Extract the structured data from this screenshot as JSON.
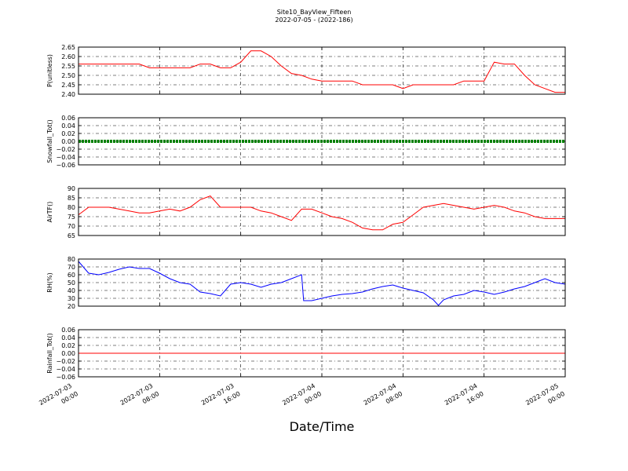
{
  "figure": {
    "title": "Site10_BayView_Fifteen",
    "subtitle": "2022-07-05 - (2022-186)",
    "xlabel": "Date/Time"
  },
  "chart_data": [
    {
      "type": "line",
      "ylabel": "P(unitless)",
      "ylim": [
        2.4,
        2.65
      ],
      "yticks": [
        "2.65",
        "2.60",
        "2.55",
        "2.50",
        "2.45",
        "2.40"
      ],
      "xlim": [
        0,
        48
      ],
      "x_unit": "hours since 2022-07-03 00:00",
      "color": "#ff0000",
      "grid": true,
      "x": [
        0,
        2,
        4,
        5,
        6,
        7,
        8,
        9,
        10,
        11,
        12,
        13,
        14,
        15,
        16,
        17,
        18,
        19,
        20,
        21,
        22,
        23,
        24,
        25,
        26,
        27,
        28,
        29,
        30,
        31,
        32,
        33,
        34,
        35,
        36,
        37,
        38,
        39,
        40,
        41,
        42,
        43,
        44,
        45,
        46,
        47,
        48
      ],
      "y": [
        2.56,
        2.56,
        2.56,
        2.56,
        2.56,
        2.54,
        2.54,
        2.54,
        2.54,
        2.54,
        2.56,
        2.56,
        2.54,
        2.54,
        2.57,
        2.63,
        2.63,
        2.6,
        2.55,
        2.51,
        2.5,
        2.48,
        2.47,
        2.47,
        2.47,
        2.47,
        2.45,
        2.45,
        2.45,
        2.45,
        2.43,
        2.45,
        2.45,
        2.45,
        2.45,
        2.45,
        2.47,
        2.47,
        2.47,
        2.57,
        2.56,
        2.56,
        2.5,
        2.45,
        2.43,
        2.41,
        2.41
      ]
    },
    {
      "type": "line",
      "ylabel": "Snowfall_Tot()",
      "ylim": [
        -0.06,
        0.06
      ],
      "yticks": [
        "0.06",
        "0.04",
        "0.02",
        "0.00",
        "−0.02",
        "−0.04",
        "−0.06"
      ],
      "xlim": [
        0,
        48
      ],
      "x_unit": "hours since 2022-07-03 00:00",
      "color": "#008000",
      "marker": "dot",
      "grid": true,
      "x": [
        0,
        48
      ],
      "y": [
        0.0,
        0.0
      ]
    },
    {
      "type": "line",
      "ylabel": "AirTF()",
      "ylim": [
        65,
        90
      ],
      "yticks": [
        "90",
        "85",
        "80",
        "75",
        "70",
        "65"
      ],
      "xlim": [
        0,
        48
      ],
      "x_unit": "hours since 2022-07-03 00:00",
      "color": "#ff0000",
      "grid": true,
      "x": [
        0,
        1,
        2,
        3,
        4,
        5,
        6,
        7,
        8,
        9,
        10,
        11,
        12,
        13,
        14,
        15,
        16,
        17,
        18,
        19,
        20,
        21,
        22,
        23,
        24,
        25,
        26,
        27,
        28,
        29,
        30,
        31,
        32,
        33,
        34,
        35,
        36,
        37,
        38,
        39,
        40,
        41,
        42,
        43,
        44,
        45,
        46,
        47,
        48
      ],
      "y": [
        76,
        80,
        80,
        80,
        79,
        78,
        77,
        77,
        78,
        79,
        78,
        80,
        84,
        86,
        80,
        80,
        80,
        80,
        78,
        77,
        75,
        73,
        79,
        79,
        77,
        75,
        74,
        72,
        69,
        68,
        68,
        71,
        72,
        76,
        80,
        81,
        82,
        81,
        80,
        79,
        80,
        81,
        80,
        78,
        77,
        75,
        74,
        74,
        74
      ]
    },
    {
      "type": "line",
      "ylabel": "RH(%)",
      "ylim": [
        20,
        80
      ],
      "yticks": [
        "80",
        "70",
        "60",
        "50",
        "40",
        "30",
        "20"
      ],
      "xlim": [
        0,
        48
      ],
      "x_unit": "hours since 2022-07-03 00:00",
      "color": "#0000ff",
      "grid": true,
      "x": [
        0,
        1,
        2,
        3,
        4,
        5,
        6,
        7,
        8,
        9,
        10,
        11,
        12,
        13,
        14,
        15,
        16,
        17,
        18,
        19,
        20,
        21,
        22,
        22.2,
        23,
        24,
        25,
        26,
        27,
        28,
        29,
        30,
        31,
        32,
        33,
        34,
        35,
        35.5,
        36,
        37,
        38,
        39,
        40,
        41,
        42,
        43,
        44,
        45,
        46,
        47,
        48
      ],
      "y": [
        77,
        62,
        60,
        63,
        67,
        70,
        68,
        68,
        62,
        55,
        50,
        48,
        38,
        36,
        33,
        48,
        50,
        48,
        44,
        48,
        50,
        55,
        60,
        27,
        27,
        30,
        33,
        35,
        36,
        38,
        42,
        45,
        47,
        43,
        40,
        37,
        28,
        21,
        28,
        33,
        35,
        40,
        38,
        35,
        38,
        42,
        45,
        50,
        55,
        50,
        48
      ]
    },
    {
      "type": "line",
      "ylabel": "Rainfall_Tot()",
      "ylim": [
        -0.06,
        0.06
      ],
      "yticks": [
        "0.06",
        "0.04",
        "0.02",
        "0.00",
        "−0.02",
        "−0.04",
        "−0.06"
      ],
      "xlim": [
        0,
        48
      ],
      "x_unit": "hours since 2022-07-03 00:00",
      "color": "#ff0000",
      "grid": true,
      "x": [
        0,
        48
      ],
      "y": [
        0.0,
        0.0
      ]
    }
  ],
  "xticks": [
    {
      "x": 0,
      "line1": "2022-07-03",
      "line2": "00:00"
    },
    {
      "x": 8,
      "line1": "2022-07-03",
      "line2": "08:00"
    },
    {
      "x": 16,
      "line1": "2022-07-03",
      "line2": "16:00"
    },
    {
      "x": 24,
      "line1": "2022-07-04",
      "line2": "00:00"
    },
    {
      "x": 32,
      "line1": "2022-07-04",
      "line2": "08:00"
    },
    {
      "x": 40,
      "line1": "2022-07-04",
      "line2": "16:00"
    },
    {
      "x": 48,
      "line1": "2022-07-05",
      "line2": "00:00"
    }
  ]
}
